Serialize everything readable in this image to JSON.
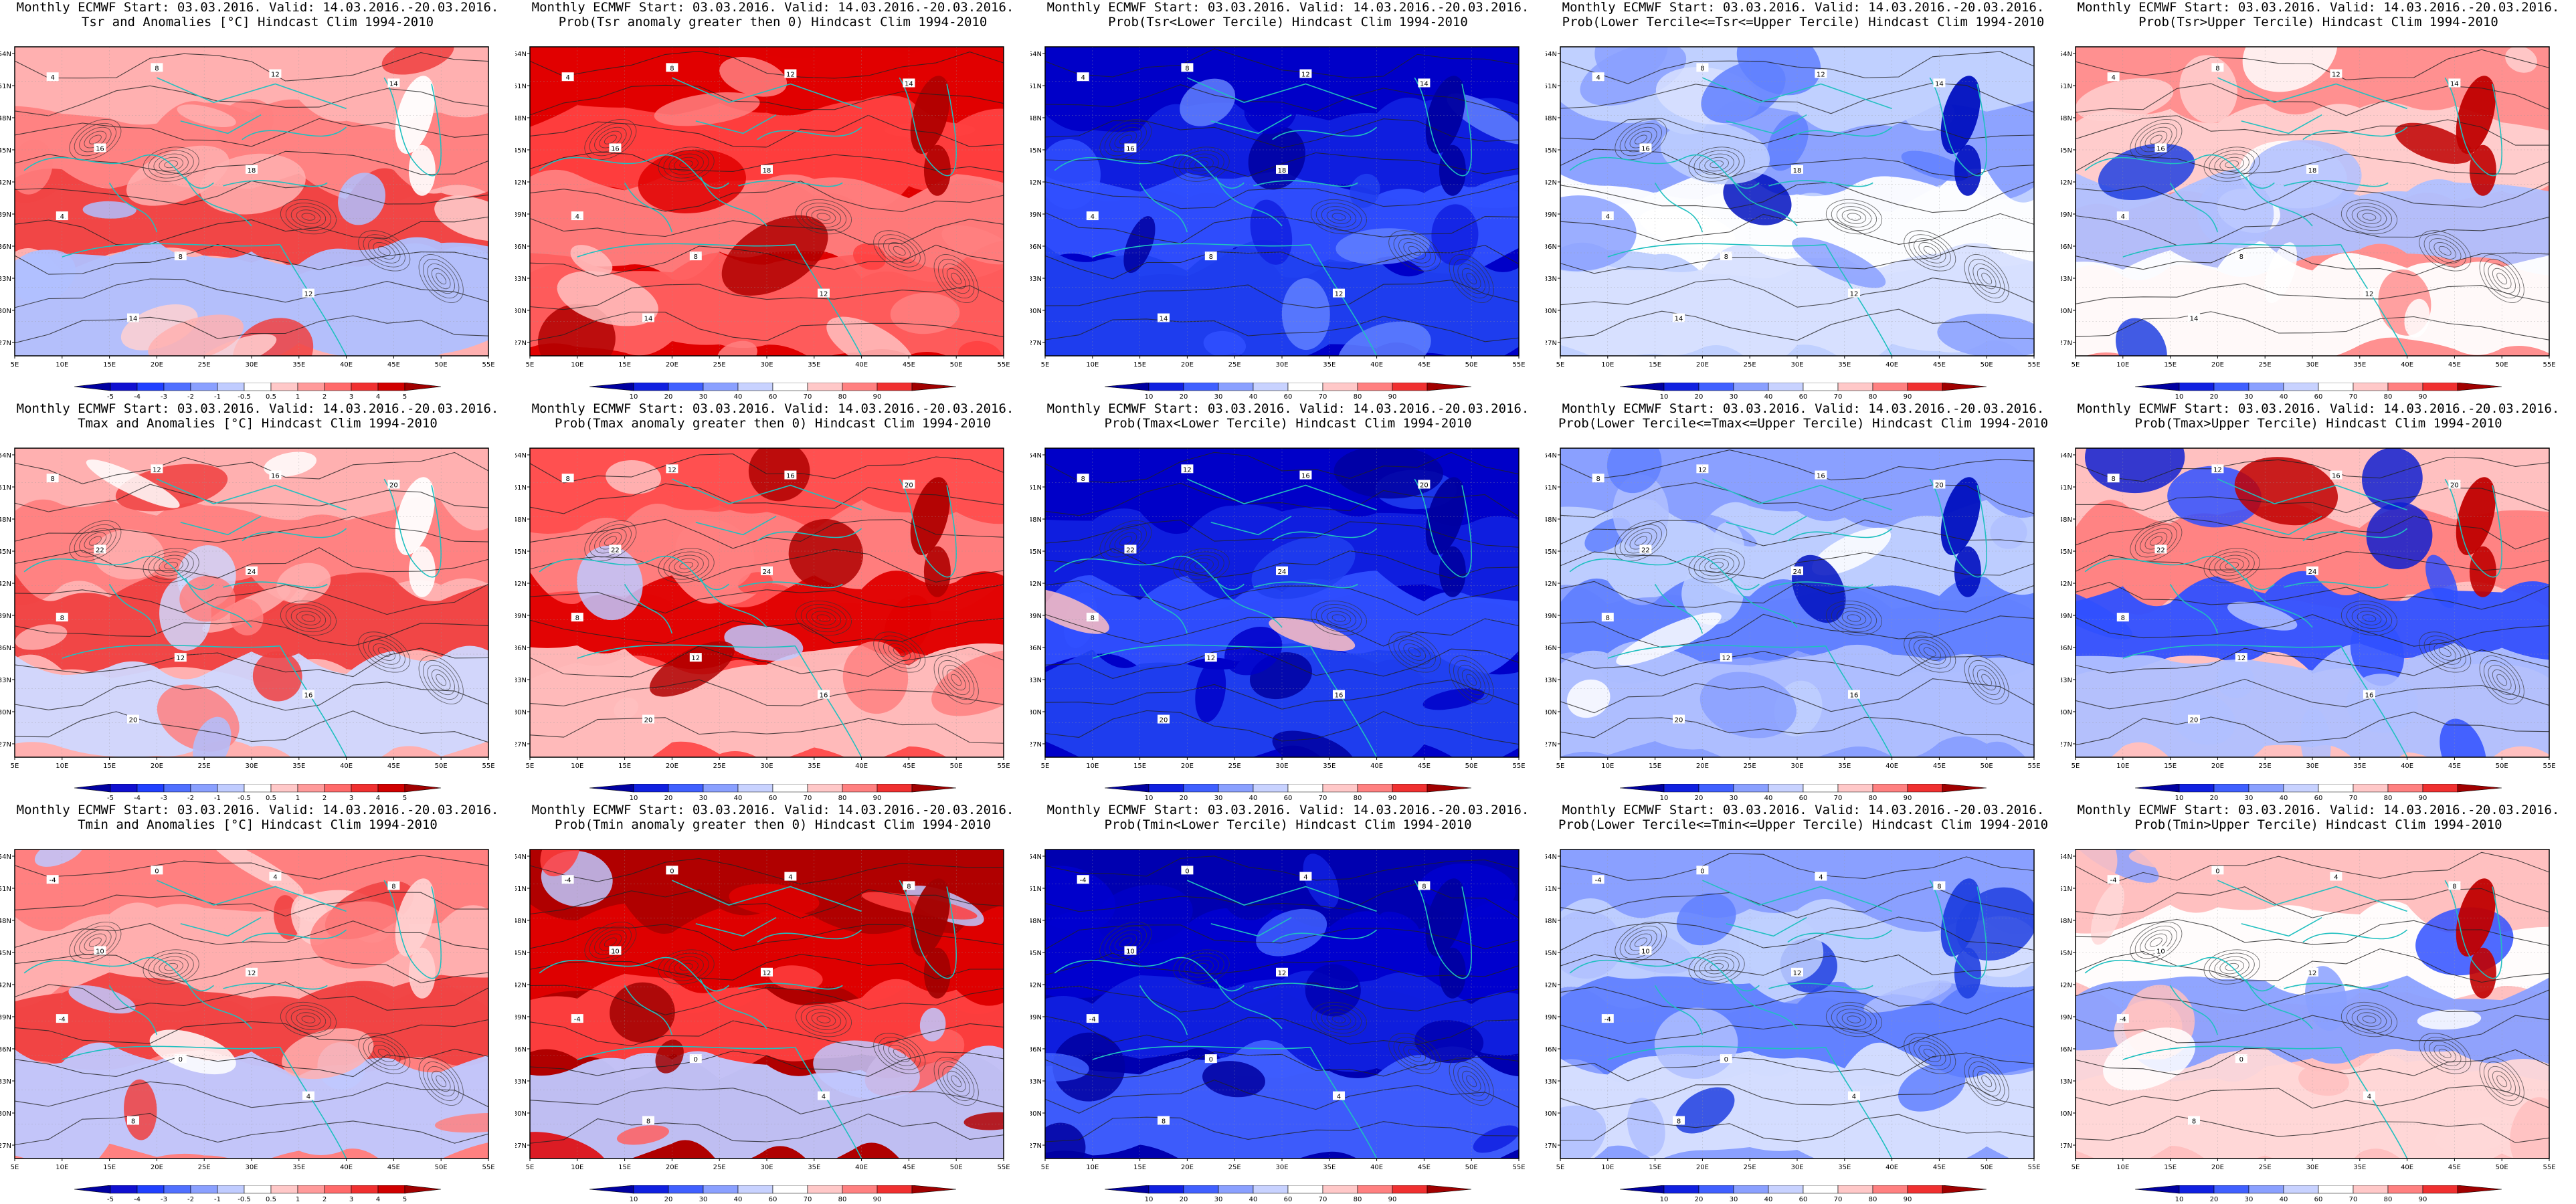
{
  "panels": [
    {
      "title1": "Monthly ECMWF Start: 03.03.2016. Valid: 14.03.2016.-20.03.2016.",
      "title2": "Tsr and Anomalies [°C] Hindcast Clim 1994-2010",
      "scale": "anom",
      "colors": [
        "#ffb0b0",
        "#ff8080",
        "#f04040",
        "#ffffff",
        "#ffd0d0",
        "#b0c0ff"
      ],
      "contours": [
        "4",
        "8",
        "12",
        "14",
        "16",
        "18"
      ]
    },
    {
      "title1": "Monthly ECMWF Start: 03.03.2016. Valid: 14.03.2016.-20.03.2016.",
      "title2": "Prob(Tsr anomaly greater then 0) Hindcast Clim 1994-2010",
      "scale": "prob",
      "colors": [
        "#e00000",
        "#ff4040",
        "#ff8080",
        "#b00000",
        "#ffc0c0",
        "#ff6060"
      ],
      "contours": [
        "4",
        "8",
        "12",
        "14",
        "16",
        "18"
      ]
    },
    {
      "title1": "Monthly ECMWF Start: 03.03.2016. Valid: 14.03.2016.-20.03.2016.",
      "title2": "Prob(Tsr<Lower Tercile) Hindcast Clim 1994-2010",
      "scale": "prob",
      "colors": [
        "#0000c8",
        "#1020e0",
        "#3050ff",
        "#0000a0",
        "#6080ff",
        "#2040f0"
      ],
      "contours": [
        "4",
        "8",
        "12",
        "14",
        "16",
        "18"
      ]
    },
    {
      "title1": "Monthly ECMWF Start: 03.03.2016. Valid: 14.03.2016.-20.03.2016.",
      "title2": "Prob(Lower Tercile<=Tsr<=Upper Tercile) Hindcast Clim 1994-2010",
      "scale": "prob",
      "colors": [
        "#c0d0ff",
        "#8aa0ff",
        "#ffffff",
        "#0010c0",
        "#6080ff",
        "#d8e0ff"
      ],
      "contours": [
        "4",
        "8",
        "12",
        "14",
        "16",
        "18"
      ]
    },
    {
      "title1": "Monthly ECMWF Start: 03.03.2016. Valid: 14.03.2016.-20.03.2016.",
      "title2": "Prob(Tsr>Upper Tercile) Hindcast Clim 1994-2010",
      "scale": "prob",
      "colors": [
        "#ff9090",
        "#ffd0d0",
        "#b0c0ff",
        "#c00000",
        "#2040e0",
        "#ffffff"
      ],
      "contours": [
        "4",
        "8",
        "12",
        "14",
        "16",
        "18"
      ]
    },
    {
      "title1": "Monthly ECMWF Start: 03.03.2016. Valid: 14.03.2016.-20.03.2016.",
      "title2": "Tmax and Anomalies [°C] Hindcast Clim 1994-2010",
      "scale": "anom",
      "colors": [
        "#ffb0b0",
        "#ff8080",
        "#f04040",
        "#ffffff",
        "#b0c0ff",
        "#d0d8ff"
      ],
      "contours": [
        "8",
        "12",
        "16",
        "20",
        "22",
        "24"
      ]
    },
    {
      "title1": "Monthly ECMWF Start: 03.03.2016. Valid: 14.03.2016.-20.03.2016.",
      "title2": "Prob(Tmax anomaly greater then 0) Hindcast Clim 1994-2010",
      "scale": "prob",
      "colors": [
        "#ff5050",
        "#ff8080",
        "#e00000",
        "#b00000",
        "#c0c8ff",
        "#ffc0c0"
      ],
      "contours": [
        "8",
        "12",
        "16",
        "20",
        "22",
        "24"
      ]
    },
    {
      "title1": "Monthly ECMWF Start: 03.03.2016. Valid: 14.03.2016.-20.03.2016.",
      "title2": "Prob(Tmax<Lower Tercile) Hindcast Clim 1994-2010",
      "scale": "prob",
      "colors": [
        "#0000c8",
        "#1020e0",
        "#3050ff",
        "#0000a0",
        "#ffc0c0",
        "#2040f0"
      ],
      "contours": [
        "8",
        "12",
        "16",
        "20",
        "22",
        "24"
      ]
    },
    {
      "title1": "Monthly ECMWF Start: 03.03.2016. Valid: 14.03.2016.-20.03.2016.",
      "title2": "Prob(Lower Tercile<=Tmax<=Upper Tercile) Hindcast Clim 1994-2010",
      "scale": "prob",
      "colors": [
        "#8aa0ff",
        "#c0d0ff",
        "#6080ff",
        "#0010c0",
        "#ffffff",
        "#b0c0ff"
      ],
      "contours": [
        "8",
        "12",
        "16",
        "20",
        "22",
        "24"
      ]
    },
    {
      "title1": "Monthly ECMWF Start: 03.03.2016. Valid: 14.03.2016.-20.03.2016.",
      "title2": "Prob(Tmax>Upper Tercile) Hindcast Clim 1994-2010",
      "scale": "prob",
      "colors": [
        "#ffc0c0",
        "#ff8080",
        "#3050ff",
        "#c00000",
        "#1020d0",
        "#b0c0ff"
      ],
      "contours": [
        "8",
        "12",
        "16",
        "20",
        "22",
        "24"
      ]
    },
    {
      "title1": "Monthly ECMWF Start: 03.03.2016. Valid: 14.03.2016.-20.03.2016.",
      "title2": "Tmin and Anomalies [°C] Hindcast Clim 1994-2010",
      "scale": "anom",
      "colors": [
        "#ff8080",
        "#ffb0b0",
        "#f04040",
        "#ffd0d0",
        "#ffffff",
        "#c0c8ff"
      ],
      "contours": [
        "-4",
        "0",
        "4",
        "8",
        "10",
        "12"
      ]
    },
    {
      "title1": "Monthly ECMWF Start: 03.03.2016. Valid: 14.03.2016.-20.03.2016.",
      "title2": "Prob(Tmin anomaly greater then 0) Hindcast Clim 1994-2010",
      "scale": "prob",
      "colors": [
        "#b00000",
        "#e00000",
        "#ff4040",
        "#a00000",
        "#ff6060",
        "#c0c8ff"
      ],
      "contours": [
        "-4",
        "0",
        "4",
        "8",
        "10",
        "12"
      ]
    },
    {
      "title1": "Monthly ECMWF Start: 03.03.2016. Valid: 14.03.2016.-20.03.2016.",
      "title2": "Prob(Tmin<Lower Tercile) Hindcast Clim 1994-2010",
      "scale": "prob",
      "colors": [
        "#0000b0",
        "#0000d0",
        "#1020e0",
        "#0000a0",
        "#0000c8",
        "#4060ff"
      ],
      "contours": [
        "-4",
        "0",
        "4",
        "8",
        "10",
        "12"
      ]
    },
    {
      "title1": "Monthly ECMWF Start: 03.03.2016. Valid: 14.03.2016.-20.03.2016.",
      "title2": "Prob(Lower Tercile<=Tmin<=Upper Tercile) Hindcast Clim 1994-2010",
      "scale": "prob",
      "colors": [
        "#8aa0ff",
        "#c0d0ff",
        "#6080ff",
        "#2040e0",
        "#b0c0ff",
        "#d8e0ff"
      ],
      "contours": [
        "-4",
        "0",
        "4",
        "8",
        "10",
        "12"
      ]
    },
    {
      "title1": "Monthly ECMWF Start: 03.03.2016. Valid: 14.03.2016.-20.03.2016.",
      "title2": "Prob(Tmin>Upper Tercile) Hindcast Clim 1994-2010",
      "scale": "prob",
      "colors": [
        "#ffc0c0",
        "#ffffff",
        "#8aa0ff",
        "#c00000",
        "#3050ff",
        "#ffd8d8"
      ],
      "contours": [
        "-4",
        "0",
        "4",
        "8",
        "10",
        "12"
      ]
    }
  ],
  "axes": {
    "lon_labels": [
      "5E",
      "10E",
      "15E",
      "20E",
      "25E",
      "30E",
      "35E",
      "40E",
      "45E",
      "50E",
      "55E"
    ],
    "lat_labels": [
      "54N",
      "51N",
      "48N",
      "45N",
      "42N",
      "39N",
      "36N",
      "33N",
      "30N",
      "27N"
    ]
  },
  "colorbars": {
    "anom": {
      "labels": [
        "-5",
        "-4",
        "-3",
        "-2",
        "-1",
        "-0.5",
        "0.5",
        "1",
        "2",
        "3",
        "4",
        "5"
      ],
      "colors": [
        "#0000a0",
        "#1010d0",
        "#2040ff",
        "#5070ff",
        "#8aa0ff",
        "#c0ccff",
        "#ffffff",
        "#ffc8c8",
        "#ff9a9a",
        "#ff6a6a",
        "#f03030",
        "#d00000",
        "#a00000"
      ]
    },
    "prob": {
      "labels": [
        "10",
        "20",
        "30",
        "40",
        "60",
        "70",
        "80",
        "90"
      ],
      "colors": [
        "#0000a0",
        "#1020e0",
        "#4060ff",
        "#8aa0ff",
        "#c8d2ff",
        "#ffffff",
        "#ffc8c8",
        "#ff8080",
        "#f03030",
        "#a00000"
      ]
    }
  },
  "style": {
    "coast_color": "#20c0c0",
    "contour_color": "#222222",
    "frame_color": "#000000"
  }
}
